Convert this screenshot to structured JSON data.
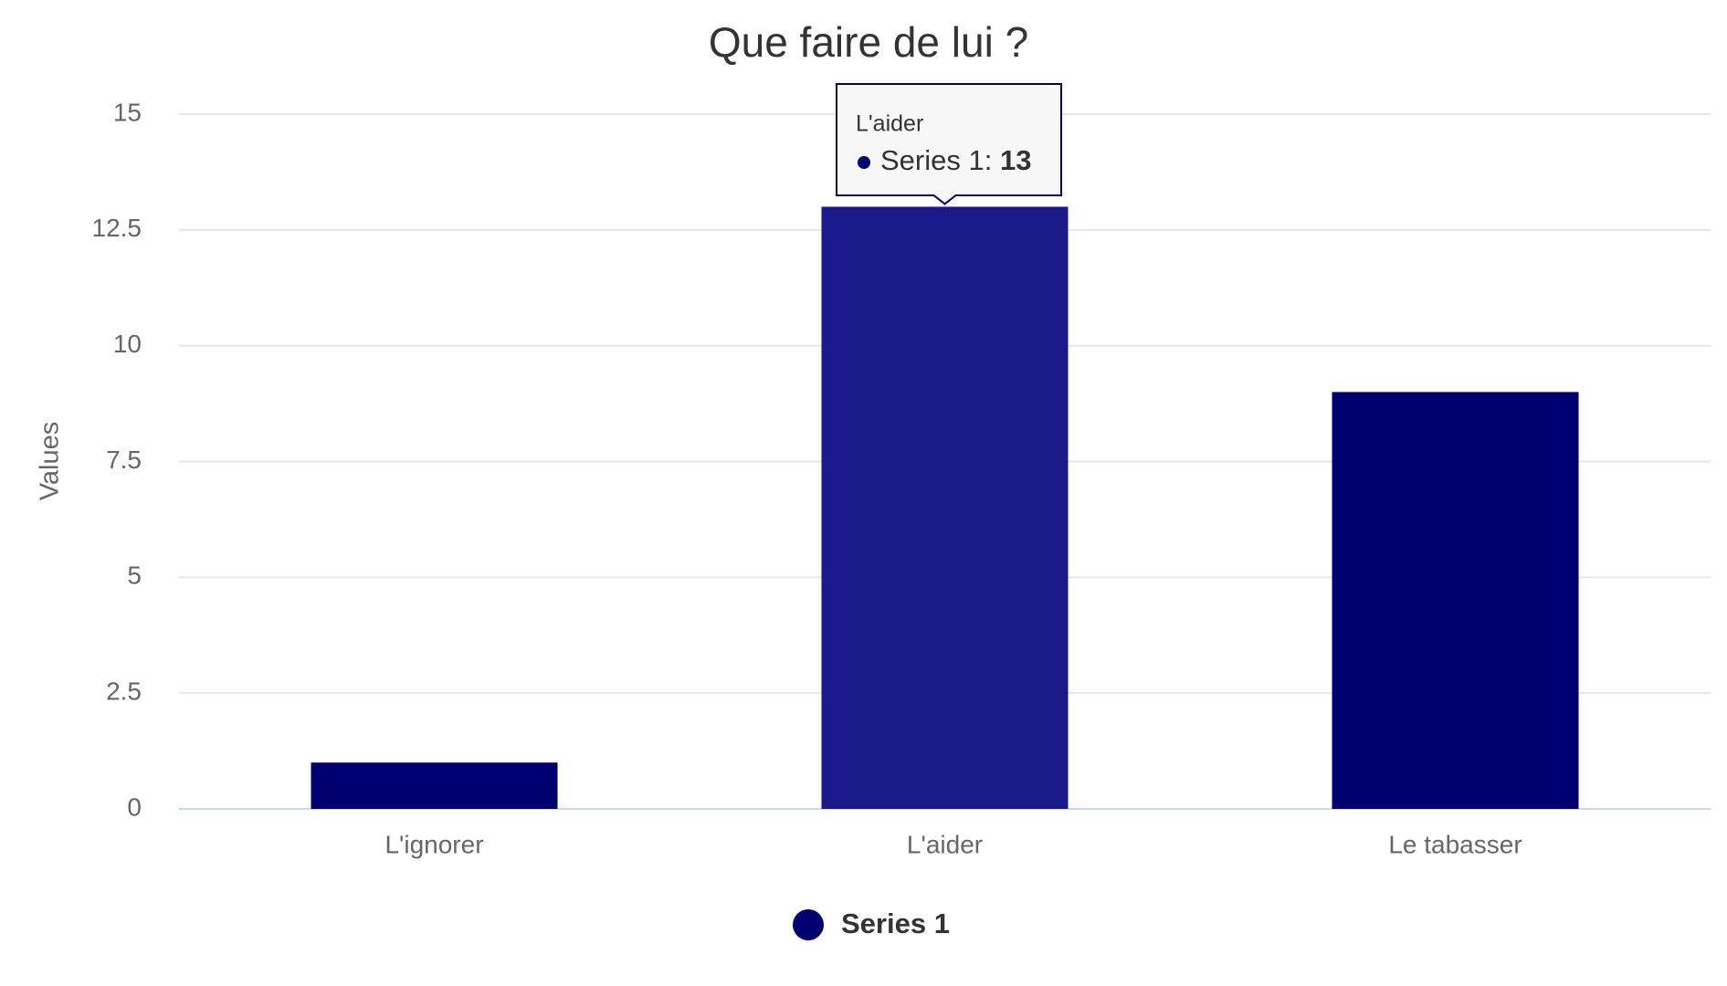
{
  "chart_data": {
    "type": "bar",
    "title": "Que faire de lui ?",
    "y_label": "Values",
    "categories": [
      "L'ignorer",
      "L'aider",
      "Le tabasser"
    ],
    "series": [
      {
        "name": "Series 1",
        "color": "#000070",
        "values": [
          1,
          13,
          9
        ]
      }
    ],
    "hover_color": "#1a1a8a",
    "ylim": [
      0,
      15
    ],
    "yticks": [
      0,
      2.5,
      5,
      7.5,
      10,
      12.5,
      15
    ],
    "grid": true,
    "legend": "bottom"
  }
}
